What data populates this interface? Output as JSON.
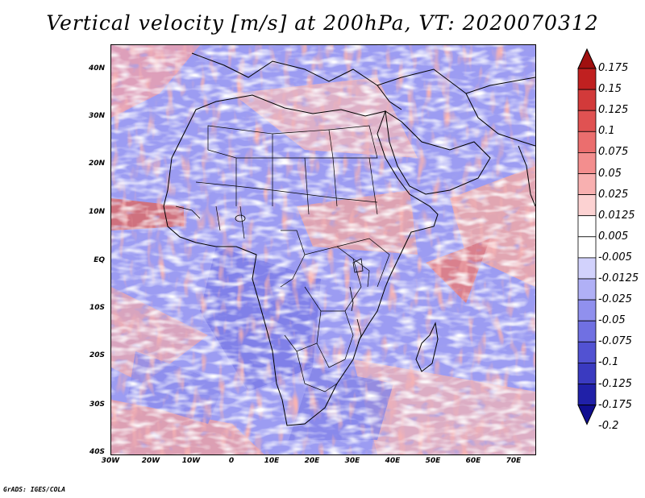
{
  "title": "Vertical velocity [m/s] at 200hPa, VT: 2020070312",
  "lat_ticks": [
    "40N",
    "30N",
    "20N",
    "10N",
    "EQ",
    "10S",
    "20S",
    "30S",
    "40S"
  ],
  "lon_ticks": [
    "30W",
    "20W",
    "10W",
    "0",
    "10E",
    "20E",
    "30E",
    "40E",
    "50E",
    "60E",
    "70E"
  ],
  "colorbar": {
    "levels": [
      "0.175",
      "0.15",
      "0.125",
      "0.1",
      "0.075",
      "0.05",
      "0.025",
      "0.0125",
      "0.005",
      "-0.005",
      "-0.0125",
      "-0.025",
      "-0.05",
      "-0.075",
      "-0.1",
      "-0.125",
      "-0.175",
      "-0.2"
    ],
    "colors": [
      "#a01010",
      "#c02020",
      "#d23a3a",
      "#e05252",
      "#eb6e6e",
      "#f38e8e",
      "#f8b0b0",
      "#fcd2d2",
      "#ffffff",
      "#ffffff",
      "#d2d2fc",
      "#b0b0f6",
      "#9090ee",
      "#7070e2",
      "#5252d2",
      "#3a3ac0",
      "#2020a8",
      "#100e90"
    ]
  },
  "map": {
    "domain": "Africa",
    "lon_range": [
      "30W",
      "75E"
    ],
    "lat_range": [
      "40S",
      "45N"
    ],
    "field_colors": {
      "neutral": "#ffffff",
      "negative": "#8a8aee",
      "positive": "#ee8080"
    }
  },
  "credit": "GrADS: IGES/COLA"
}
